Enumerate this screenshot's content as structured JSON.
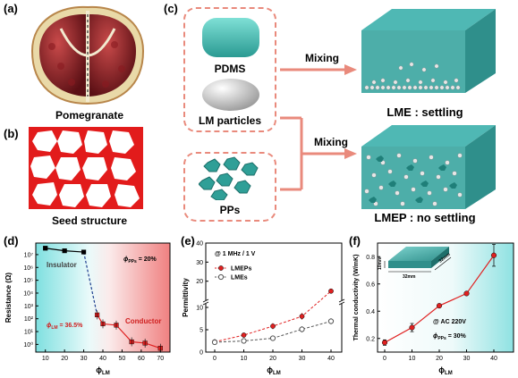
{
  "panel_labels": {
    "a": "(a)",
    "b": "(b)",
    "c": "(c)",
    "d": "(d)",
    "e": "(e)",
    "f": "(f)"
  },
  "captions": {
    "pomegranate": "Pomegranate",
    "seed": "Seed structure",
    "pdms": "PDMS",
    "lm": "LM particles",
    "pps": "PPs",
    "mixing_top": "Mixing",
    "mixing_bottom": "Mixing",
    "lme": "LME : settling",
    "lmep": "LMEP : no settling"
  },
  "colors": {
    "accent": "#e98a7c",
    "teal": "#3fb8b0",
    "red_series": "#e02020",
    "gray_series": "#555555",
    "lm_sphere": "#d9d9d9"
  },
  "chart_data": [
    {
      "type": "line",
      "panel": "(d)",
      "xlabel_main": "ϕ",
      "xlabel_sub": "LM",
      "ylabel": "Resistance (Ω)",
      "x": [
        10,
        20,
        30,
        37,
        40,
        47,
        55,
        62,
        70
      ],
      "y_log10": [
        7.5,
        7.3,
        7.2,
        2.3,
        1.6,
        1.5,
        0.2,
        0.1,
        -0.3
      ],
      "xticks": [
        "10",
        "20",
        "30",
        "40",
        "50",
        "60",
        "70"
      ],
      "yticks": [
        "10⁰",
        "10¹",
        "10²",
        "10³",
        "10⁴",
        "10⁵",
        "10⁶",
        "10⁷"
      ],
      "ylim_log10": [
        -0.6,
        7.9
      ],
      "xlim": [
        5,
        75
      ],
      "annotations": {
        "insulator": "Insulator",
        "conductor": "Conductor",
        "phi_pps_main": "ϕ",
        "phi_pps_sub": "PPs",
        "phi_pps_val": " = 20%",
        "threshold_main": "ϕ",
        "threshold_sub": "LM",
        "threshold_val": " = 36.5%"
      }
    },
    {
      "type": "line",
      "panel": "(e)",
      "xlabel_main": "ϕ",
      "xlabel_sub": "LM",
      "ylabel": "Permittivity",
      "condition": "@ 1 MHz / 1 V",
      "x": [
        0,
        10,
        20,
        30,
        40
      ],
      "series": [
        {
          "name": "LMEPs",
          "values": [
            2.3,
            3.8,
            5.8,
            8.0,
            14.8
          ],
          "err": [
            0.3,
            0.5,
            0.7,
            0.8,
            1.2
          ]
        },
        {
          "name": "LMEs",
          "values": [
            2.2,
            2.5,
            3.1,
            5.1,
            6.9
          ],
          "err": [
            0.3,
            0.5,
            0.6,
            0.7,
            0.7
          ]
        }
      ],
      "xticks": [
        "0",
        "10",
        "20",
        "30",
        "40"
      ],
      "yticks_low": [
        "0",
        "5",
        "10"
      ],
      "yticks_high": [
        "20",
        "30",
        "40"
      ],
      "axis_break_at": 10
    },
    {
      "type": "line",
      "panel": "(f)",
      "xlabel_main": "ϕ",
      "xlabel_sub": "LM",
      "ylabel": "Thermal conductivity (W/mK)",
      "x": [
        0,
        10,
        20,
        30,
        40
      ],
      "y": [
        0.17,
        0.28,
        0.44,
        0.53,
        0.81
      ],
      "err": [
        0.02,
        0.03,
        0.01,
        0.01,
        0.08
      ],
      "xticks": [
        "0",
        "10",
        "20",
        "30",
        "40"
      ],
      "yticks": [
        "0.2",
        "0.4",
        "0.6",
        "0.8"
      ],
      "ylim": [
        0.1,
        0.9
      ],
      "annotations": {
        "ac": "@ AC 220V",
        "phi_pps_main": "ϕ",
        "phi_pps_sub": "PPs",
        "phi_pps_val": " = 30%",
        "dim_thick": "10mm",
        "dim_width": "32mm",
        "dim_length": "32mm"
      }
    }
  ]
}
